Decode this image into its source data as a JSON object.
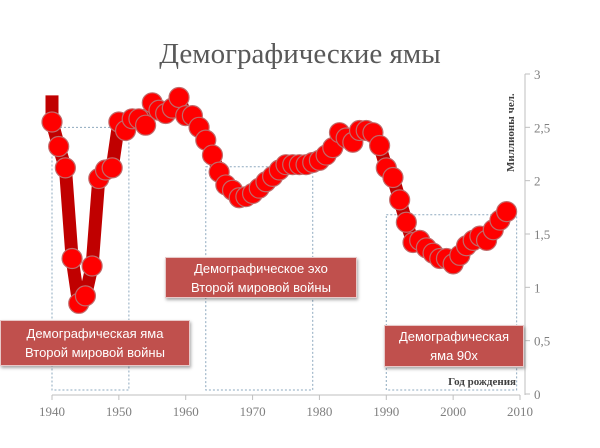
{
  "chart_data": {
    "type": "line",
    "title": "Демографические ямы",
    "xlabel": "Год рождения",
    "ylabel": "Миллионы чел.",
    "xlim": [
      1940,
      2010
    ],
    "ylim": [
      0,
      3
    ],
    "x_ticks": [
      "1940",
      "1950",
      "1960",
      "1970",
      "1980",
      "1990",
      "2000",
      "2010"
    ],
    "y_ticks": [
      "0",
      "0,5",
      "1",
      "1,5",
      "2",
      "2,5",
      "3"
    ],
    "grid": false,
    "y_axis_side": "right",
    "colors": {
      "line": "#c00000",
      "marker": "#ff0000",
      "marker_edge": "#c06a6a",
      "callout": "#c0504d",
      "box": "#8ea9bf"
    },
    "x": [
      1940,
      1941,
      1942,
      1943,
      1944,
      1945,
      1946,
      1947,
      1948,
      1949,
      1950,
      1951,
      1952,
      1953,
      1954,
      1955,
      1956,
      1957,
      1958,
      1959,
      1960,
      1961,
      1962,
      1963,
      1964,
      1965,
      1966,
      1967,
      1968,
      1969,
      1970,
      1971,
      1972,
      1973,
      1974,
      1975,
      1976,
      1977,
      1978,
      1979,
      1980,
      1981,
      1982,
      1983,
      1984,
      1985,
      1986,
      1987,
      1988,
      1989,
      1990,
      1991,
      1992,
      1993,
      1994,
      1995,
      1996,
      1997,
      1998,
      1999,
      2000,
      2001,
      2002,
      2003,
      2004,
      2005,
      2006,
      2007,
      2008
    ],
    "values": [
      2.55,
      2.32,
      2.12,
      1.27,
      0.85,
      0.92,
      1.2,
      2.02,
      2.1,
      2.12,
      2.55,
      2.47,
      2.58,
      2.58,
      2.52,
      2.73,
      2.66,
      2.63,
      2.68,
      2.78,
      2.61,
      2.61,
      2.5,
      2.38,
      2.24,
      2.08,
      1.96,
      1.91,
      1.84,
      1.85,
      1.88,
      1.93,
      1.99,
      2.04,
      2.1,
      2.15,
      2.15,
      2.15,
      2.15,
      2.17,
      2.19,
      2.24,
      2.31,
      2.45,
      2.4,
      2.36,
      2.47,
      2.47,
      2.45,
      2.33,
      2.12,
      2.03,
      1.82,
      1.61,
      1.42,
      1.44,
      1.37,
      1.32,
      1.27,
      1.27,
      1.22,
      1.3,
      1.39,
      1.44,
      1.48,
      1.44,
      1.54,
      1.63,
      1.71
    ],
    "regions": [
      {
        "x_range": [
          1940,
          1951.5
        ],
        "top": 2.5,
        "label": [
          "Демографическая яма",
          "Второй мировой войны"
        ]
      },
      {
        "x_range": [
          1963,
          1979
        ],
        "top": 2.13,
        "label": [
          "Демографическое эхо",
          "Второй мировой войны"
        ]
      },
      {
        "x_range": [
          1990,
          2009.5
        ],
        "top": 1.68,
        "label": [
          "Демографическая",
          "яма 90х"
        ]
      }
    ]
  }
}
